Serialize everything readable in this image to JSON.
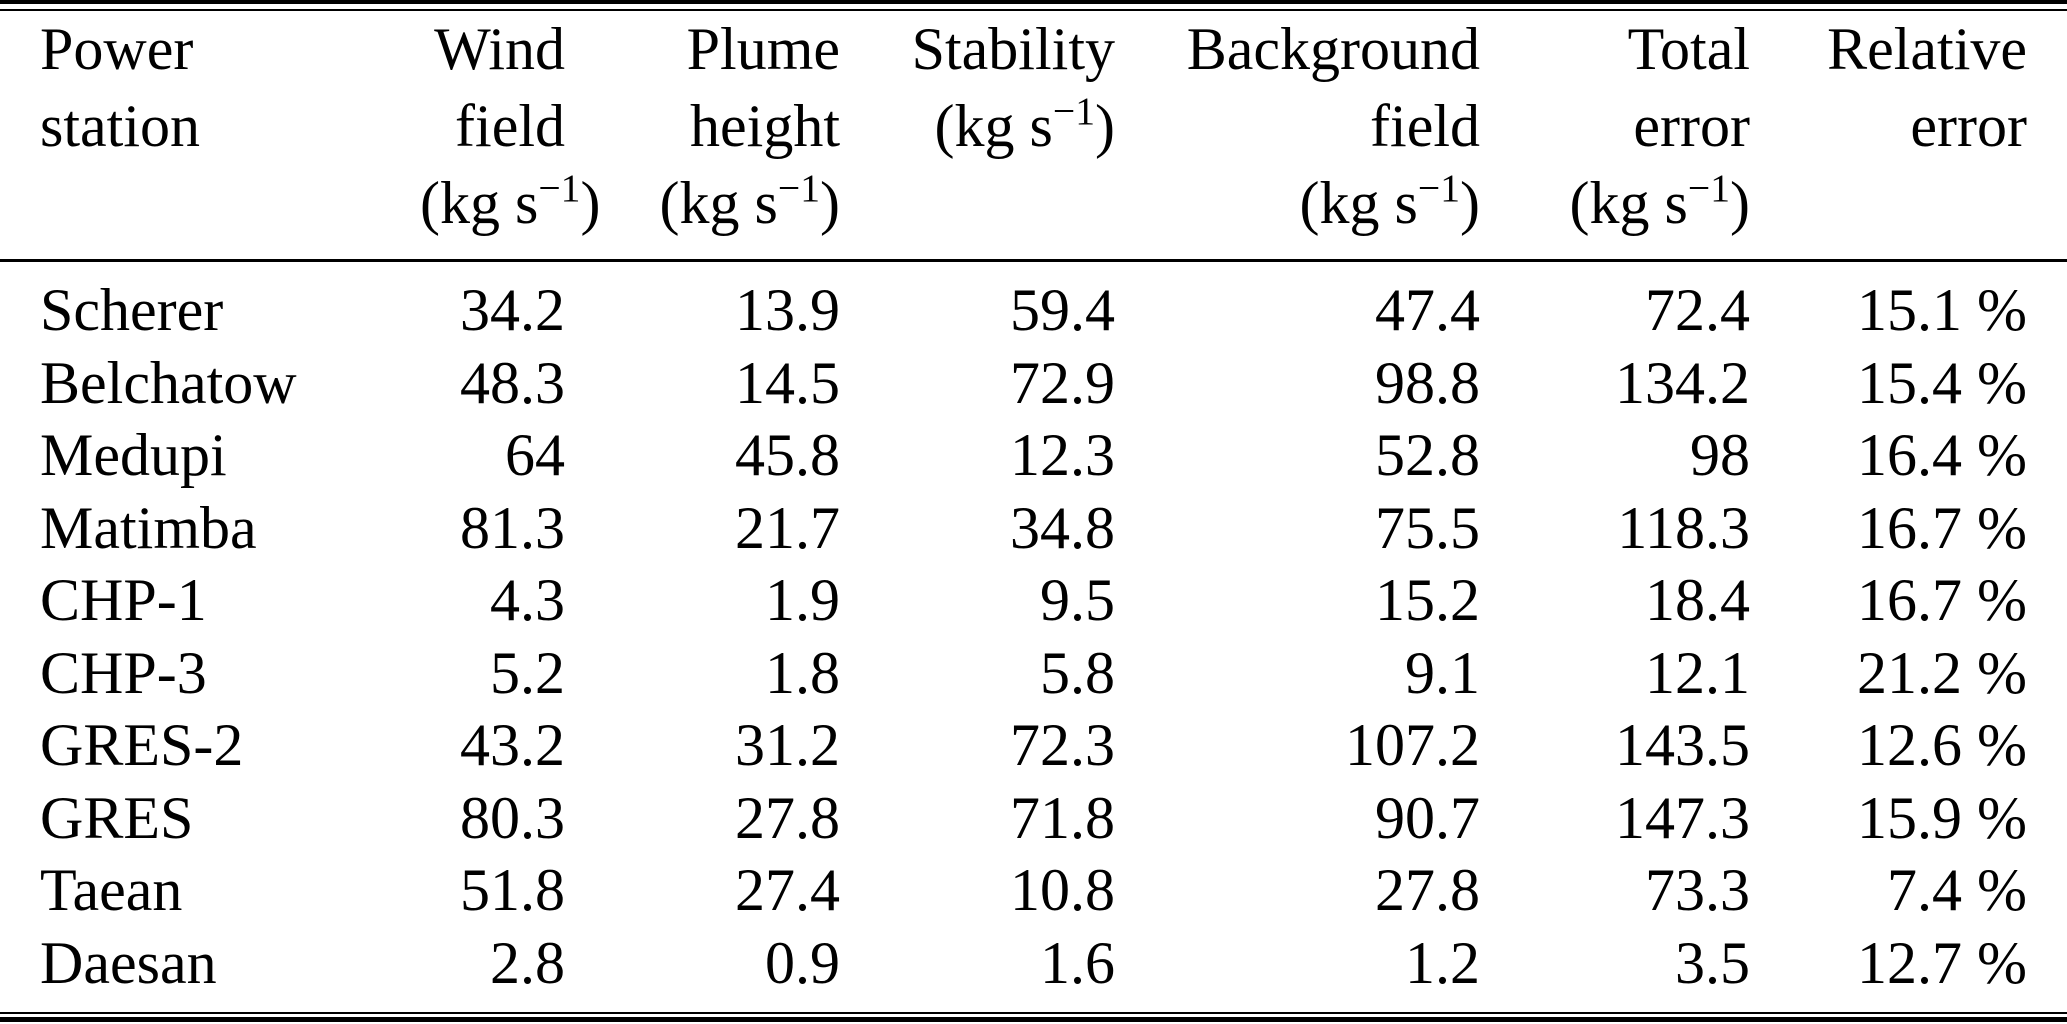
{
  "table": {
    "unit": {
      "open": "(kg s",
      "sup": "−1",
      "close": ")"
    },
    "header": {
      "power_line1": "Power",
      "power_line2": "station",
      "wind_line1": "Wind",
      "wind_line2": "field",
      "plume_line1": "Plume",
      "plume_line2": "height",
      "stability_line1": "Stability",
      "background_line1": "Background",
      "background_line2": "field",
      "total_line1": "Total",
      "total_line2": "error",
      "relative_line1": "Relative",
      "relative_line2": "error"
    },
    "rows": [
      {
        "station": "Scherer",
        "wind": "34.2",
        "plume": "13.9",
        "stability": "59.4",
        "background": "47.4",
        "total": "72.4",
        "relative": "15.1 %"
      },
      {
        "station": "Belchatow",
        "wind": "48.3",
        "plume": "14.5",
        "stability": "72.9",
        "background": "98.8",
        "total": "134.2",
        "relative": "15.4 %"
      },
      {
        "station": "Medupi",
        "wind": "64",
        "plume": "45.8",
        "stability": "12.3",
        "background": "52.8",
        "total": "98",
        "relative": "16.4 %"
      },
      {
        "station": "Matimba",
        "wind": "81.3",
        "plume": "21.7",
        "stability": "34.8",
        "background": "75.5",
        "total": "118.3",
        "relative": "16.7 %"
      },
      {
        "station": "CHP-1",
        "wind": "4.3",
        "plume": "1.9",
        "stability": "9.5",
        "background": "15.2",
        "total": "18.4",
        "relative": "16.7 %"
      },
      {
        "station": "CHP-3",
        "wind": "5.2",
        "plume": "1.8",
        "stability": "5.8",
        "background": "9.1",
        "total": "12.1",
        "relative": "21.2 %"
      },
      {
        "station": "GRES-2",
        "wind": "43.2",
        "plume": "31.2",
        "stability": "72.3",
        "background": "107.2",
        "total": "143.5",
        "relative": "12.6 %"
      },
      {
        "station": "GRES",
        "wind": "80.3",
        "plume": "27.8",
        "stability": "71.8",
        "background": "90.7",
        "total": "147.3",
        "relative": "15.9 %"
      },
      {
        "station": "Taean",
        "wind": "51.8",
        "plume": "27.4",
        "stability": "10.8",
        "background": "27.8",
        "total": "73.3",
        "relative": "7.4 %"
      },
      {
        "station": "Daesan",
        "wind": "2.8",
        "plume": "0.9",
        "stability": "1.6",
        "background": "1.2",
        "total": "3.5",
        "relative": "12.7 %"
      }
    ]
  }
}
